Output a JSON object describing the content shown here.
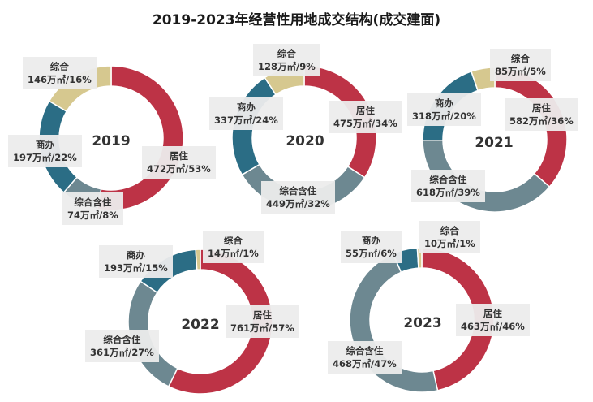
{
  "title": "2019-2023年经营性用地成交结构(成交建面)",
  "colors": {
    "居住": "#bd3346",
    "综合含住": "#6d8891",
    "商办": "#2b6d85",
    "综合": "#d6c88f"
  },
  "chart_data": [
    {
      "type": "pie",
      "year": "2019",
      "slices": [
        {
          "name": "居住",
          "text": "472万㎡/53%",
          "value": 472
        },
        {
          "name": "综合含住",
          "text": "74万㎡/8%",
          "value": 74
        },
        {
          "name": "商办",
          "text": "197万㎡/22%",
          "value": 197
        },
        {
          "name": "综合",
          "text": "146万㎡/16%",
          "value": 146
        }
      ]
    },
    {
      "type": "pie",
      "year": "2020",
      "slices": [
        {
          "name": "居住",
          "text": "475万㎡/34%",
          "value": 475
        },
        {
          "name": "综合含住",
          "text": "449万㎡/32%",
          "value": 449
        },
        {
          "name": "商办",
          "text": "337万㎡/24%",
          "value": 337
        },
        {
          "name": "综合",
          "text": "128万㎡/9%",
          "value": 128
        }
      ]
    },
    {
      "type": "pie",
      "year": "2021",
      "slices": [
        {
          "name": "居住",
          "text": "582万㎡/36%",
          "value": 582
        },
        {
          "name": "综合含住",
          "text": "618万㎡/39%",
          "value": 618
        },
        {
          "name": "商办",
          "text": "318万㎡/20%",
          "value": 318
        },
        {
          "name": "综合",
          "text": "85万㎡/5%",
          "value": 85
        }
      ]
    },
    {
      "type": "pie",
      "year": "2022",
      "slices": [
        {
          "name": "居住",
          "text": "761万㎡/57%",
          "value": 761
        },
        {
          "name": "综合含住",
          "text": "361万㎡/27%",
          "value": 361
        },
        {
          "name": "商办",
          "text": "193万㎡/15%",
          "value": 193
        },
        {
          "name": "综合",
          "text": "14万㎡/1%",
          "value": 14
        }
      ]
    },
    {
      "type": "pie",
      "year": "2023",
      "slices": [
        {
          "name": "居住",
          "text": "463万㎡/46%",
          "value": 463
        },
        {
          "name": "综合含住",
          "text": "468万㎡/47%",
          "value": 468
        },
        {
          "name": "商办",
          "text": "55万㎡/6%",
          "value": 55
        },
        {
          "name": "综合",
          "text": "10万㎡/1%",
          "value": 10
        }
      ]
    }
  ]
}
